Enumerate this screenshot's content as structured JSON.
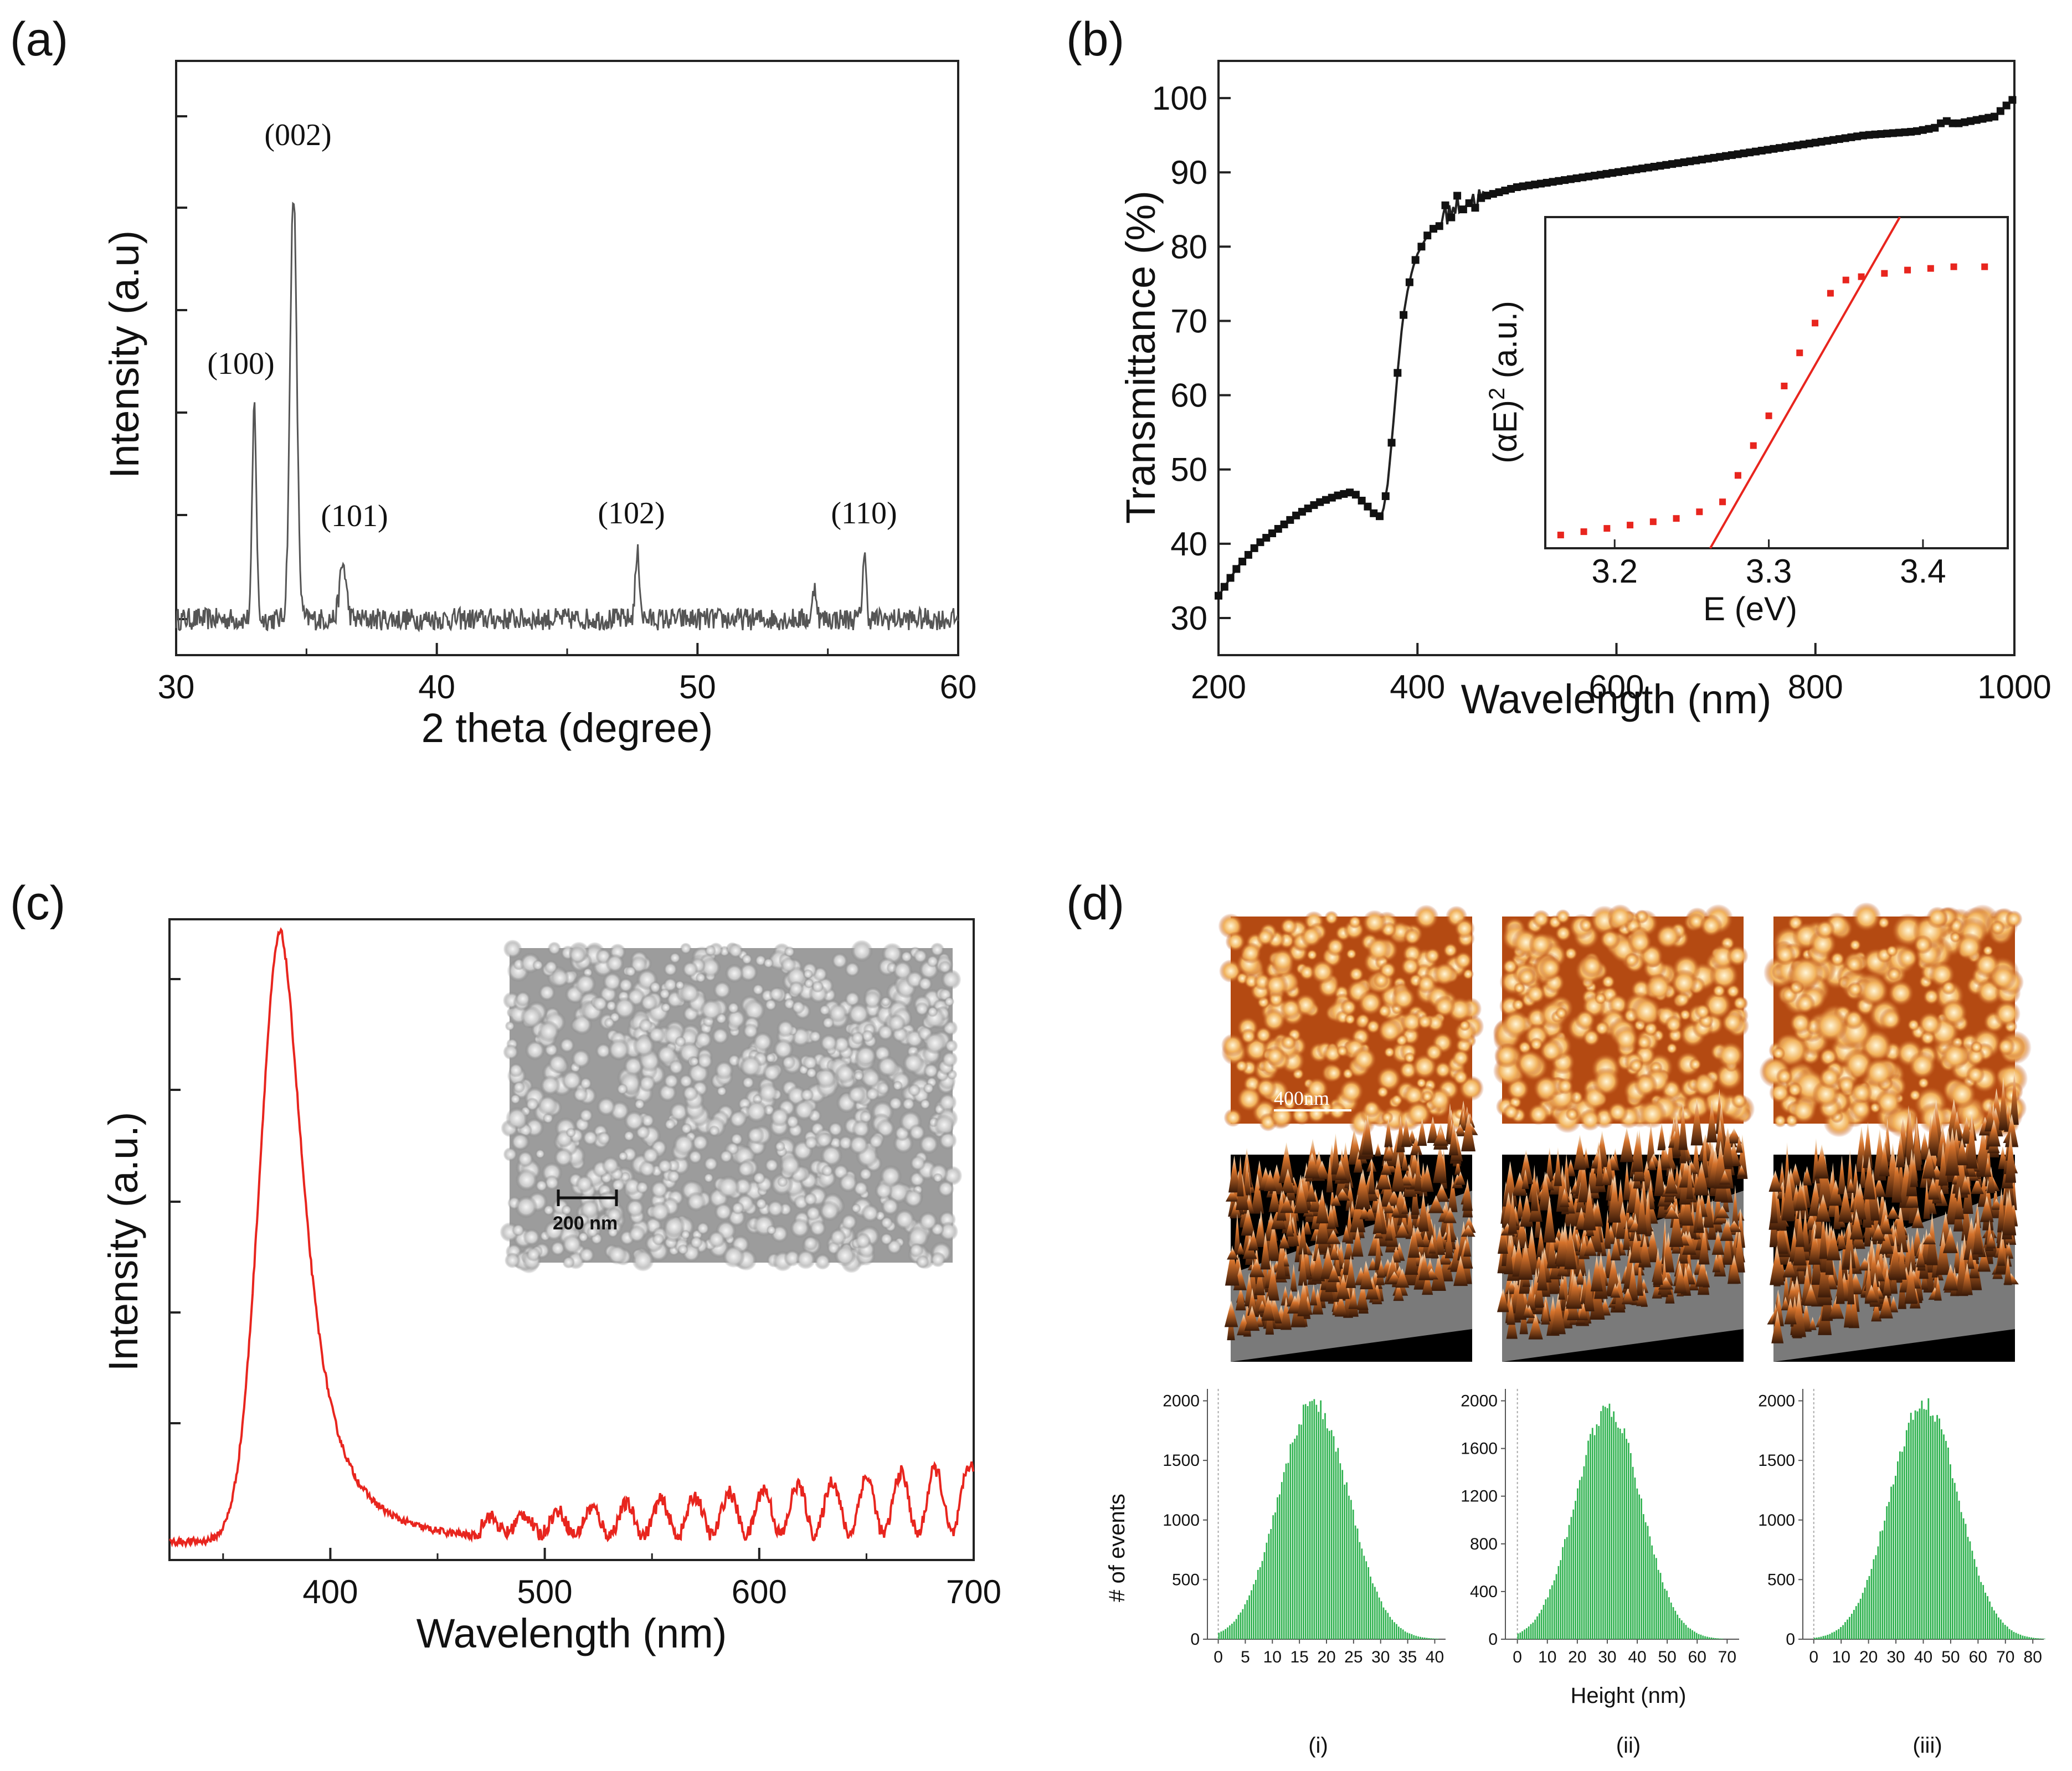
{
  "panels": {
    "a": {
      "label": "(a)"
    },
    "b": {
      "label": "(b)"
    },
    "c": {
      "label": "(c)"
    },
    "d": {
      "label": "(d)"
    }
  },
  "colors": {
    "red": "#e8251e",
    "green": "#2fb24f",
    "black": "#111111",
    "gray": "#555555"
  },
  "chart_data": [
    {
      "id": "a",
      "type": "line",
      "title": "",
      "xlabel": "2 theta (degree)",
      "ylabel": "Intensity (a.u)",
      "xlim": [
        30,
        60
      ],
      "ylim": [
        0,
        1.1
      ],
      "xticks": [
        30,
        40,
        50,
        60
      ],
      "xtick_labels": [
        "30",
        "40",
        "50",
        "60"
      ],
      "peaks": [
        {
          "x": 33.0,
          "y": 0.43,
          "w": 0.11,
          "label": "(100)"
        },
        {
          "x": 34.5,
          "y": 0.86,
          "w": 0.18,
          "label": "(002)"
        },
        {
          "x": 36.4,
          "y": 0.11,
          "w": 0.18,
          "label": "(101)"
        },
        {
          "x": 47.7,
          "y": 0.13,
          "w": 0.12,
          "label": "(102)"
        },
        {
          "x": 54.5,
          "y": 0.07,
          "w": 0.1,
          "label": ""
        },
        {
          "x": 56.4,
          "y": 0.13,
          "w": 0.1,
          "label": "(110)"
        }
      ],
      "annotations": [
        "(100)",
        "(002)",
        "(101)",
        "(102)",
        "(110)"
      ]
    },
    {
      "id": "b",
      "type": "scatter",
      "xlabel": "Wavelength (nm)",
      "ylabel": "Transmittance (%)",
      "xlim": [
        200,
        1000
      ],
      "ylim": [
        25,
        105
      ],
      "xticks": [
        200,
        400,
        600,
        800,
        1000
      ],
      "xtick_labels": [
        "200",
        "400",
        "600",
        "800",
        "1000"
      ],
      "yticks": [
        30,
        40,
        50,
        60,
        70,
        80,
        90,
        100
      ],
      "ytick_labels": [
        "30",
        "40",
        "50",
        "60",
        "70",
        "80",
        "90",
        "100"
      ],
      "x": [
        200,
        220,
        240,
        260,
        280,
        300,
        320,
        335,
        350,
        360,
        365,
        370,
        375,
        380,
        385,
        390,
        395,
        400,
        410,
        420,
        430,
        440,
        460,
        500,
        550,
        600,
        650,
        700,
        750,
        800,
        850,
        900,
        920,
        930,
        940,
        960,
        980,
        1000
      ],
      "y": [
        33,
        37,
        40,
        42,
        44,
        45.5,
        46.5,
        47,
        45,
        43.5,
        44,
        48,
        55,
        63,
        70,
        74,
        77,
        79,
        81.5,
        83,
        84.5,
        85.5,
        86.5,
        88,
        89,
        90,
        91,
        92,
        93,
        94,
        95,
        95.5,
        96,
        97,
        96.5,
        97,
        97.5,
        100
      ],
      "inset": {
        "xlabel": "E (eV)",
        "ylabel": "(αE)² (a.u.)",
        "xlim": [
          3.155,
          3.455
        ],
        "ylim": [
          0,
          1
        ],
        "xticks": [
          3.2,
          3.3,
          3.4
        ],
        "xtick_labels": [
          "3.2",
          "3.3",
          "3.4"
        ],
        "x": [
          3.165,
          3.18,
          3.195,
          3.21,
          3.225,
          3.24,
          3.255,
          3.27,
          3.28,
          3.29,
          3.3,
          3.31,
          3.32,
          3.33,
          3.34,
          3.35,
          3.36,
          3.375,
          3.39,
          3.405,
          3.42,
          3.44
        ],
        "y": [
          0.04,
          0.05,
          0.06,
          0.07,
          0.08,
          0.09,
          0.11,
          0.14,
          0.22,
          0.31,
          0.4,
          0.49,
          0.59,
          0.68,
          0.77,
          0.81,
          0.82,
          0.83,
          0.84,
          0.845,
          0.85,
          0.85
        ],
        "fit_line": {
          "x": [
            3.262,
            3.385
          ],
          "y": [
            0.0,
            1.0
          ]
        }
      }
    },
    {
      "id": "c",
      "type": "line",
      "xlabel": "Wavelength (nm)",
      "ylabel": "Intensity (a.u.)",
      "xlim": [
        325,
        700
      ],
      "ylim": [
        0,
        1.05
      ],
      "xticks": [
        400,
        500,
        600,
        700
      ],
      "xtick_labels": [
        "400",
        "500",
        "600",
        "700"
      ],
      "peak": {
        "x": 377,
        "y": 1.0
      },
      "inset_scale_label": "200 nm"
    },
    {
      "id": "d",
      "type": "bar",
      "afm_scale_label": "400nm",
      "histograms": [
        {
          "sample": "(i)",
          "xticks": [
            0,
            5,
            10,
            15,
            20,
            25,
            30,
            35,
            40
          ],
          "xlim": [
            -2,
            42
          ],
          "mean": 17.5,
          "sd": 6.5,
          "peak": 2000
        },
        {
          "sample": "(ii)",
          "xticks": [
            0,
            10,
            20,
            30,
            40,
            50,
            60,
            70
          ],
          "xlim": [
            -4,
            74
          ],
          "mean": 30,
          "sd": 11,
          "peak": 1950
        },
        {
          "sample": "(iii)",
          "xticks": [
            0,
            10,
            20,
            30,
            40,
            50,
            60,
            70,
            80
          ],
          "xlim": [
            -4,
            84
          ],
          "mean": 40,
          "sd": 12.5,
          "peak": 2000
        }
      ],
      "yticks": [
        0,
        400,
        500,
        800,
        1000,
        1200,
        1500,
        1600,
        2000
      ],
      "hist_yticks_i": [
        "0",
        "500",
        "1000",
        "1500",
        "2000"
      ],
      "hist_yticks_ii": [
        "0",
        "400",
        "800",
        "1200",
        "1600",
        "2000"
      ],
      "hist_yticks_iii": [
        "0",
        "500",
        "1000",
        "1500",
        "2000"
      ],
      "ylabel": "# of events",
      "xlabel": "Height (nm)"
    }
  ]
}
